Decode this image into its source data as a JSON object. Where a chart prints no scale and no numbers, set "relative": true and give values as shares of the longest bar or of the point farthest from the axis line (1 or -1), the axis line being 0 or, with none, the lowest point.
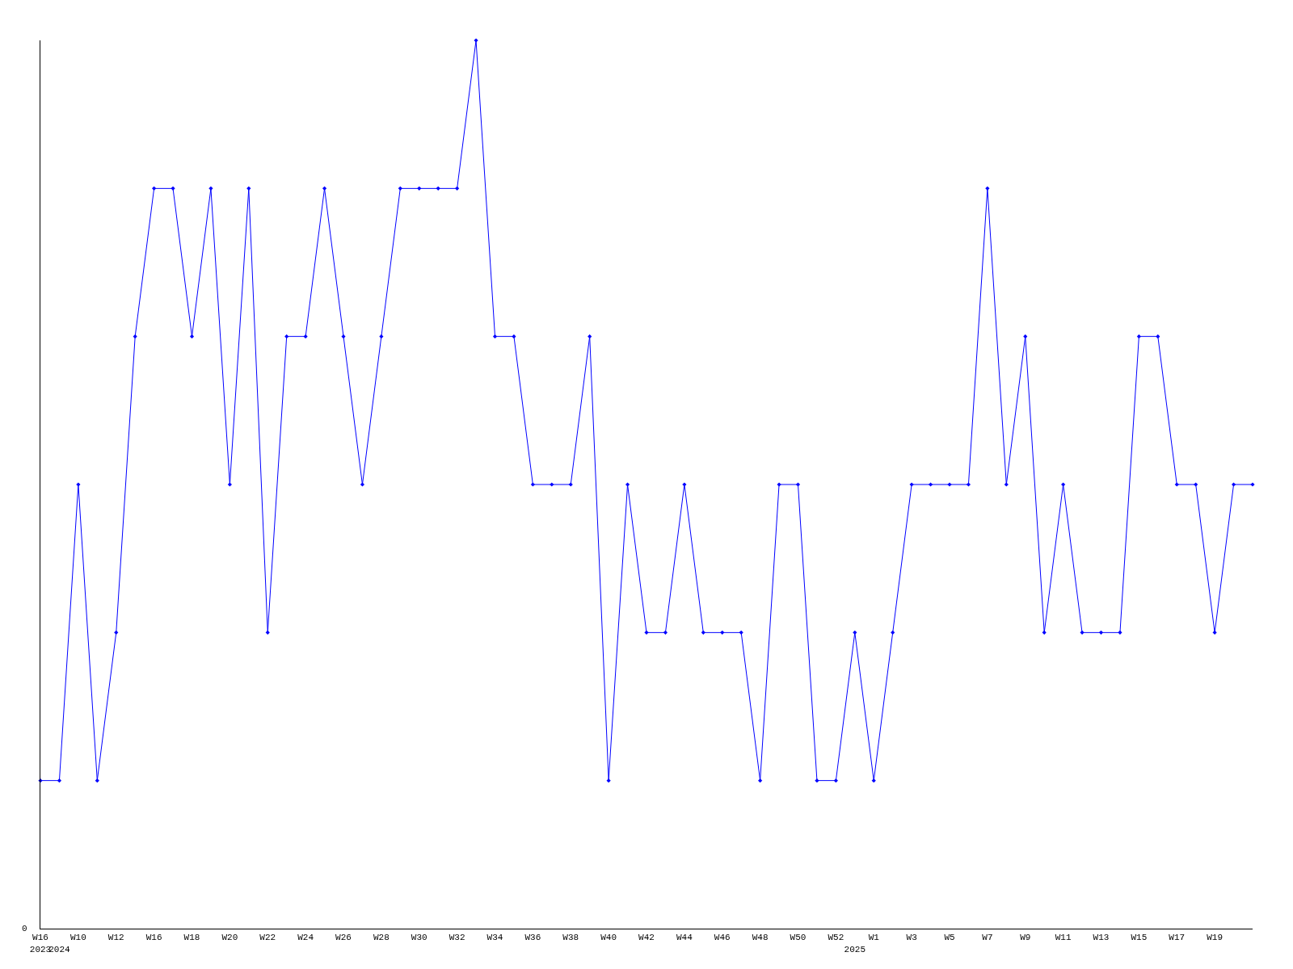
{
  "chart_data": {
    "type": "line",
    "relative": true,
    "color": "#0000ff",
    "marker": "diamond",
    "line_style": "solid",
    "legend": false,
    "annotations": [
      "0"
    ],
    "categories": [
      "W16\n2023",
      "\n2024",
      "W10",
      null,
      "W12",
      null,
      "W16",
      null,
      "W18",
      null,
      "W20",
      null,
      "W22",
      null,
      "W24",
      null,
      "W26",
      null,
      "W28",
      null,
      "W30",
      null,
      "W32",
      null,
      "W34",
      null,
      "W36",
      null,
      "W38",
      null,
      "W40",
      null,
      "W42",
      null,
      "W44",
      null,
      "W46",
      null,
      "W48",
      null,
      "W50",
      null,
      "W52",
      "\n2025",
      "W1",
      null,
      "W3",
      null,
      "W5",
      null,
      "W7",
      null,
      "W9",
      null,
      "W11",
      null,
      "W13",
      null,
      "W15",
      null,
      "W17",
      null,
      "W19",
      null,
      null
    ],
    "values": [
      0.1667,
      0.1667,
      0.5,
      0.1667,
      0.3333,
      0.6667,
      0.8333,
      0.8333,
      0.6667,
      0.8333,
      0.5,
      0.8333,
      0.3333,
      0.6667,
      0.6667,
      0.8333,
      0.6667,
      0.5,
      0.6667,
      0.8333,
      0.8333,
      0.8333,
      0.8333,
      1,
      0.6667,
      0.6667,
      0.5,
      0.5,
      0.5,
      0.6667,
      0.1667,
      0.5,
      0.3333,
      0.3333,
      0.5,
      0.3333,
      0.3333,
      0.3333,
      0.1667,
      0.5,
      0.5,
      0.1667,
      0.1667,
      0.3333,
      0.1667,
      0.3333,
      0.5,
      0.5,
      0.5,
      0.5,
      0.8333,
      0.5,
      0.6667,
      0.3333,
      0.5,
      0.3333,
      0.3333,
      0.3333,
      0.6667,
      0.6667,
      0.5,
      0.5,
      0.3333,
      0.5,
      0.5
    ]
  }
}
